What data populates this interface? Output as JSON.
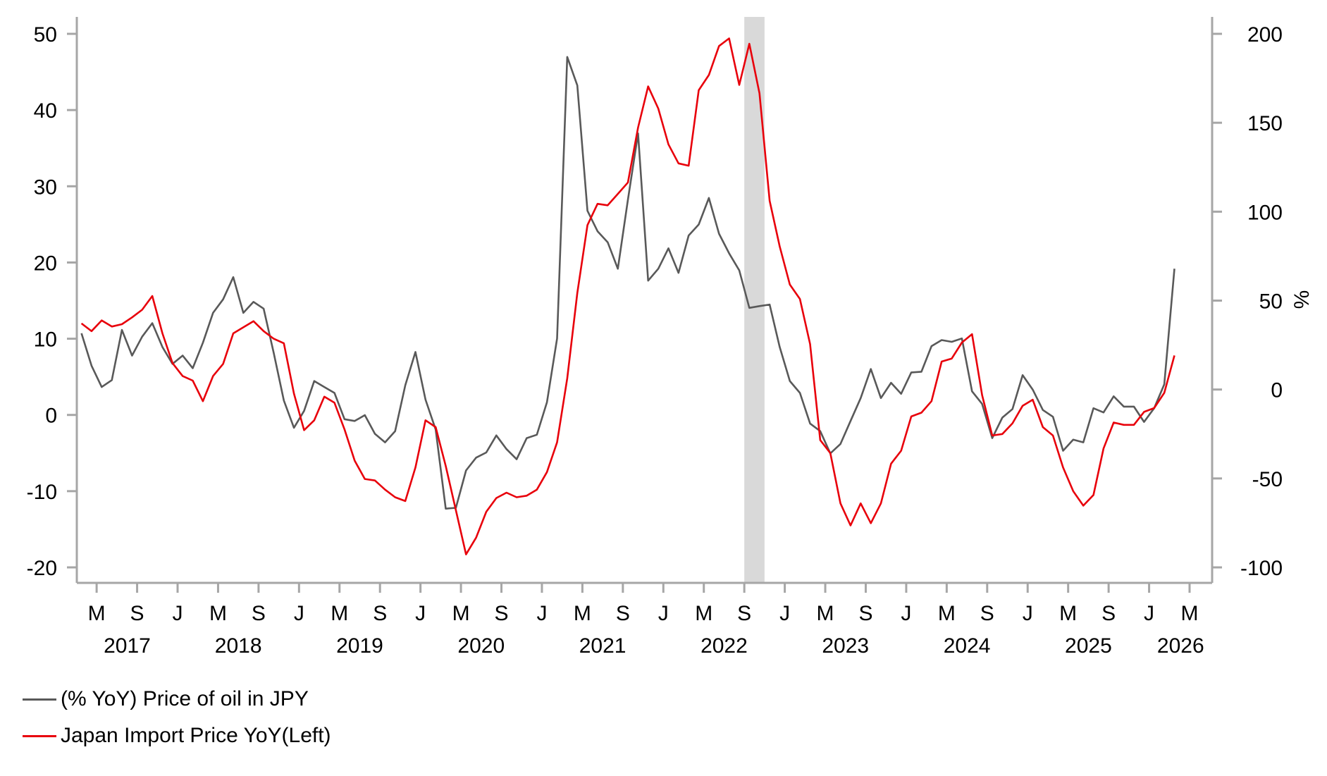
{
  "chart_data": {
    "type": "line",
    "title": "",
    "x_start": "2017-03",
    "x_end": "2026-03",
    "frequency": "monthly",
    "x_tick_labels": [
      "M",
      "S",
      "J",
      "M",
      "S",
      "J",
      "M",
      "S",
      "J",
      "M",
      "S",
      "J",
      "M",
      "S",
      "J",
      "M",
      "S",
      "J",
      "M",
      "S",
      "J",
      "M",
      "S",
      "J",
      "M",
      "S",
      "J",
      "M"
    ],
    "year_labels": [
      "2017",
      "2018",
      "2019",
      "2020",
      "2021",
      "2022",
      "2023",
      "2024",
      "2025",
      "2026"
    ],
    "left_axis": {
      "ylim": [
        -20,
        50
      ],
      "ticks": [
        -20,
        -10,
        0,
        10,
        20,
        30,
        40,
        50
      ],
      "label": ""
    },
    "right_axis": {
      "ylim": [
        -100,
        200
      ],
      "ticks": [
        -100,
        -50,
        0,
        50,
        100,
        150,
        200
      ],
      "label": "%"
    },
    "shaded_period": [
      "2022-09",
      "2022-10"
    ],
    "grid": false,
    "legend_position": "bottom-left",
    "series": [
      {
        "name": "(% YoY) Price of oil in JPY",
        "axis": "right",
        "color": "#595959",
        "values": [
          31.6,
          13.4,
          1.4,
          5.3,
          33.5,
          19.1,
          29.7,
          37.3,
          23.9,
          14.4,
          19.1,
          12.0,
          26.3,
          43.1,
          50.7,
          63.2,
          43.1,
          49.3,
          45.5,
          20.6,
          -6.2,
          -21.5,
          -12.0,
          4.8,
          1.4,
          -1.9,
          -16.7,
          -17.7,
          -14.4,
          -24.9,
          -29.7,
          -23.4,
          2.4,
          21.1,
          -5.7,
          -22.5,
          -67.0,
          -66.5,
          -45.5,
          -38.3,
          -35.4,
          -25.8,
          -33.5,
          -39.2,
          -27.3,
          -25.4,
          -7.2,
          28.7,
          187,
          171,
          100.5,
          89.0,
          82.8,
          67.9,
          106.7,
          144,
          61.2,
          67.9,
          79.4,
          65.6,
          86.6,
          92.8,
          107.7,
          87.6,
          76.6,
          67.0,
          45.9,
          46.9,
          47.8,
          23.9,
          4.8,
          -1.9,
          -19.1,
          -23.4,
          -35.9,
          -30.6,
          -17.7,
          -4.8,
          11.5,
          -4.8,
          3.8,
          -2.4,
          9.6,
          10.0,
          24.4,
          27.8,
          26.8,
          28.7,
          -1.0,
          -8.1,
          -27.3,
          -15.8,
          -11.0,
          8.1,
          0,
          -11.5,
          -15.3,
          -34.4,
          -28.2,
          -29.7,
          -10.5,
          -12.9,
          -3.8,
          -9.6,
          -9.6,
          -18.2,
          -10.5,
          2.9,
          67.9
        ]
      },
      {
        "name": "Japan Import Price YoY(Left)",
        "axis": "left",
        "color": "#e8000b",
        "values": [
          12.0,
          11.0,
          12.4,
          11.6,
          11.9,
          12.8,
          13.8,
          15.6,
          10.7,
          6.8,
          5.1,
          4.5,
          1.8,
          5.1,
          6.7,
          10.7,
          11.5,
          12.3,
          11.0,
          10.0,
          9.4,
          2.8,
          -2.0,
          -0.7,
          2.4,
          1.6,
          -1.9,
          -6.0,
          -8.4,
          -8.6,
          -9.8,
          -10.8,
          -11.3,
          -6.9,
          -0.7,
          -1.6,
          -6.7,
          -12.5,
          -18.3,
          -16.1,
          -12.7,
          -10.9,
          -10.2,
          -10.8,
          -10.6,
          -9.8,
          -7.5,
          -3.6,
          4.8,
          16.0,
          24.9,
          27.7,
          27.5,
          29.0,
          30.5,
          37.7,
          43.1,
          40.2,
          35.5,
          33.0,
          32.7,
          42.6,
          44.6,
          48.4,
          49.4,
          43.3,
          48.7,
          42.2,
          28.1,
          22.1,
          17.1,
          15.2,
          9.3,
          -3.3,
          -5.0,
          -11.6,
          -14.5,
          -11.6,
          -14.2,
          -11.6,
          -6.4,
          -4.7,
          -0.2,
          0.3,
          1.8,
          7.0,
          7.4,
          9.5,
          10.6,
          2.6,
          -2.7,
          -2.5,
          -1.1,
          1.2,
          2.0,
          -1.6,
          -2.7,
          -6.9,
          -10.0,
          -11.9,
          -10.5,
          -4.4,
          -1.0,
          -1.3,
          -1.3,
          0.4,
          0.9,
          2.9,
          7.8
        ]
      }
    ]
  }
}
